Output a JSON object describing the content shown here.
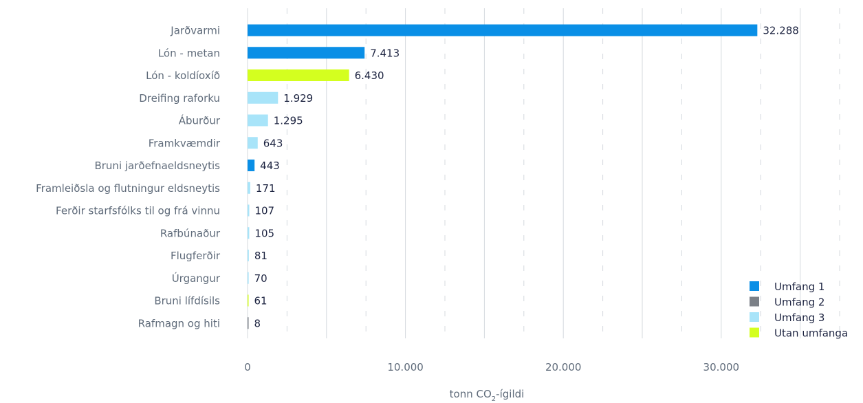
{
  "chart_data": {
    "type": "bar",
    "orientation": "horizontal",
    "categories": [
      "Jarðvarmi",
      "Lón - metan",
      "Lón - koldíoxíð",
      "Dreifing raforku",
      "Áburður",
      "Framkvæmdir",
      "Bruni jarðefnaeldsneytis",
      "Framleiðsla og flutningur eldsneytis",
      "Ferðir starfsfólks til og frá vinnu",
      "Rafbúnaður",
      "Flugferðir",
      "Úrgangur",
      "Bruni lífdísils",
      "Rafmagn og hiti"
    ],
    "values": [
      32288,
      7413,
      6430,
      1929,
      1295,
      643,
      443,
      171,
      107,
      105,
      81,
      70,
      61,
      8
    ],
    "value_labels": [
      "32.288",
      "7.413",
      "6.430",
      "1.929",
      "1.295",
      "643",
      "443",
      "171",
      "107",
      "105",
      "81",
      "70",
      "61",
      "8"
    ],
    "scope": [
      0,
      0,
      3,
      2,
      2,
      2,
      0,
      2,
      2,
      2,
      2,
      2,
      3,
      1
    ],
    "legend": [
      {
        "name": "Umfang 1",
        "color": "#0a8fe6"
      },
      {
        "name": "Umfang 2",
        "color": "#7b8087"
      },
      {
        "name": "Umfang 3",
        "color": "#a8e4f9"
      },
      {
        "name": "Utan umfanga",
        "color": "#d4ff1f"
      }
    ],
    "legend_position": "bottom-right",
    "x_ticks": [
      0,
      10000,
      20000,
      30000
    ],
    "x_tick_labels": [
      "0",
      "10.000",
      "20.000",
      "30.000"
    ],
    "xlim": [
      0,
      37500
    ],
    "xlabel_main": "tonn CO",
    "xlabel_sub": "2",
    "xlabel_suffix": "-ígildi",
    "title": "",
    "ylabel": "",
    "grid": true
  }
}
